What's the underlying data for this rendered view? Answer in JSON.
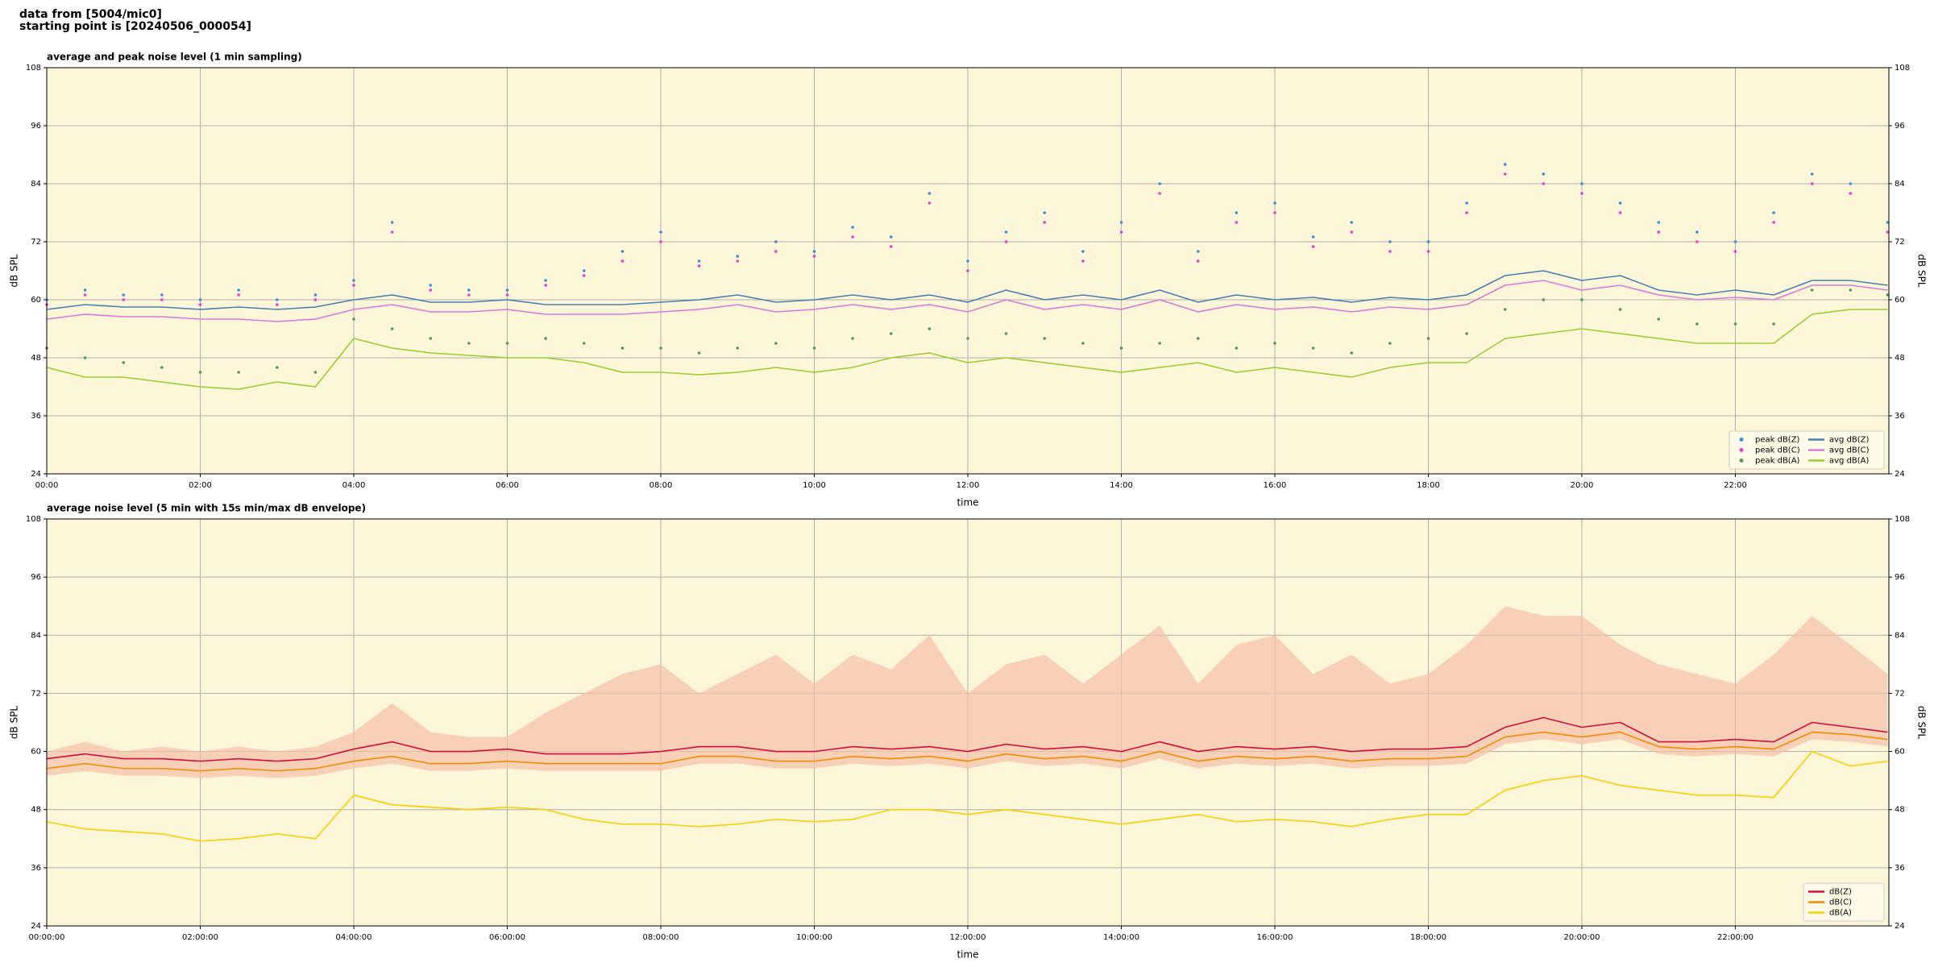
{
  "header": {
    "line1": "data from [5004/mic0]",
    "line2": "starting point is [20240506_000054]"
  },
  "chart_data": [
    {
      "type": "line",
      "title": "average and peak noise level (1 min sampling)",
      "xlabel": "time",
      "ylabel": "dB SPL",
      "y2label": "dB SPL",
      "xlim": [
        0,
        1440
      ],
      "ylim": [
        24,
        108
      ],
      "y2lim": [
        24,
        108
      ],
      "xticks": [
        {
          "value": 0,
          "label": "00:00"
        },
        {
          "value": 120,
          "label": "02:00"
        },
        {
          "value": 240,
          "label": "04:00"
        },
        {
          "value": 360,
          "label": "06:00"
        },
        {
          "value": 480,
          "label": "08:00"
        },
        {
          "value": 600,
          "label": "10:00"
        },
        {
          "value": 720,
          "label": "12:00"
        },
        {
          "value": 840,
          "label": "14:00"
        },
        {
          "value": 960,
          "label": "16:00"
        },
        {
          "value": 1080,
          "label": "18:00"
        },
        {
          "value": 1200,
          "label": "20:00"
        },
        {
          "value": 1320,
          "label": "22:00"
        }
      ],
      "yticks": [
        24,
        36,
        48,
        60,
        72,
        84,
        96,
        108
      ],
      "y2ticks": [
        24,
        36,
        48,
        60,
        72,
        84,
        96,
        108
      ],
      "grid": true,
      "background": "#fdf6d9",
      "legend": "lower right",
      "legend_columns": 2,
      "x": [
        0,
        30,
        60,
        90,
        120,
        150,
        180,
        210,
        240,
        270,
        300,
        330,
        360,
        390,
        420,
        450,
        480,
        510,
        540,
        570,
        600,
        630,
        660,
        690,
        720,
        750,
        780,
        810,
        840,
        870,
        900,
        930,
        960,
        990,
        1020,
        1050,
        1080,
        1110,
        1140,
        1170,
        1200,
        1230,
        1260,
        1290,
        1320,
        1350,
        1380,
        1410,
        1439
      ],
      "series": [
        {
          "name": "peak dB(Z)",
          "color": "#3b8fd6",
          "mode": "markers",
          "values": [
            60,
            62,
            61,
            61,
            60,
            62,
            60,
            61,
            64,
            76,
            63,
            62,
            62,
            64,
            66,
            70,
            74,
            68,
            69,
            72,
            70,
            75,
            73,
            82,
            68,
            74,
            78,
            70,
            76,
            84,
            70,
            78,
            80,
            73,
            76,
            72,
            72,
            80,
            88,
            86,
            84,
            80,
            76,
            74,
            72,
            78,
            86,
            84,
            76
          ]
        },
        {
          "name": "peak dB(C)",
          "color": "#e040d0",
          "mode": "markers",
          "values": [
            59,
            61,
            60,
            60,
            59,
            61,
            59,
            60,
            63,
            74,
            62,
            61,
            61,
            63,
            65,
            68,
            72,
            67,
            68,
            70,
            69,
            73,
            71,
            80,
            66,
            72,
            76,
            68,
            74,
            82,
            68,
            76,
            78,
            71,
            74,
            70,
            70,
            78,
            86,
            84,
            82,
            78,
            74,
            72,
            70,
            76,
            84,
            82,
            74
          ]
        },
        {
          "name": "peak dB(A)",
          "color": "#4f9a5a",
          "mode": "markers",
          "values": [
            50,
            48,
            47,
            46,
            45,
            45,
            46,
            45,
            56,
            54,
            52,
            51,
            51,
            52,
            51,
            50,
            50,
            49,
            50,
            51,
            50,
            52,
            53,
            54,
            52,
            53,
            52,
            51,
            50,
            51,
            52,
            50,
            51,
            50,
            49,
            51,
            52,
            53,
            58,
            60,
            60,
            58,
            56,
            55,
            55,
            55,
            62,
            62,
            61
          ]
        },
        {
          "name": "avg dB(Z)",
          "color": "#4a7fb0",
          "mode": "line",
          "values": [
            58,
            59,
            58.5,
            58.5,
            58,
            58.5,
            58,
            58.5,
            60,
            61,
            59.5,
            59.5,
            60,
            59,
            59,
            59,
            59.5,
            60,
            61,
            59.5,
            60,
            61,
            60,
            61,
            59.5,
            62,
            60,
            61,
            60,
            62,
            59.5,
            61,
            60,
            60.5,
            59.5,
            60.5,
            60,
            61,
            65,
            66,
            64,
            65,
            62,
            61,
            62,
            61,
            64,
            64,
            63
          ]
        },
        {
          "name": "avg dB(C)",
          "color": "#d87ad8",
          "mode": "line",
          "values": [
            56,
            57,
            56.5,
            56.5,
            56,
            56,
            55.5,
            56,
            58,
            59,
            57.5,
            57.5,
            58,
            57,
            57,
            57,
            57.5,
            58,
            59,
            57.5,
            58,
            59,
            58,
            59,
            57.5,
            60,
            58,
            59,
            58,
            60,
            57.5,
            59,
            58,
            58.5,
            57.5,
            58.5,
            58,
            59,
            63,
            64,
            62,
            63,
            61,
            60,
            60.5,
            60,
            63,
            63,
            62
          ]
        },
        {
          "name": "avg dB(A)",
          "color": "#9acd32",
          "mode": "line",
          "values": [
            46,
            44,
            44,
            43,
            42,
            41.5,
            43,
            42,
            52,
            50,
            49,
            48.5,
            48,
            48,
            47,
            45,
            45,
            44.5,
            45,
            46,
            45,
            46,
            48,
            49,
            47,
            48,
            47,
            46,
            45,
            46,
            47,
            45,
            46,
            45,
            44,
            46,
            47,
            47,
            52,
            53,
            54,
            53,
            52,
            51,
            51,
            51,
            57,
            58,
            58
          ]
        }
      ]
    },
    {
      "type": "line",
      "title": "average noise level (5 min with 15s min/max dB envelope)",
      "xlabel": "time",
      "ylabel": "dB SPL",
      "y2label": "dB SPL",
      "xlim": [
        0,
        1440
      ],
      "ylim": [
        24,
        108
      ],
      "y2lim": [
        24,
        108
      ],
      "xticks": [
        {
          "value": 0,
          "label": "00:00:00"
        },
        {
          "value": 120,
          "label": "02:00:00"
        },
        {
          "value": 240,
          "label": "04:00:00"
        },
        {
          "value": 360,
          "label": "06:00:00"
        },
        {
          "value": 480,
          "label": "08:00:00"
        },
        {
          "value": 600,
          "label": "10:00:00"
        },
        {
          "value": 720,
          "label": "12:00:00"
        },
        {
          "value": 840,
          "label": "14:00:00"
        },
        {
          "value": 960,
          "label": "16:00:00"
        },
        {
          "value": 1080,
          "label": "18:00:00"
        },
        {
          "value": 1200,
          "label": "20:00:00"
        },
        {
          "value": 1320,
          "label": "22:00:00"
        }
      ],
      "yticks": [
        24,
        36,
        48,
        60,
        72,
        84,
        96,
        108
      ],
      "y2ticks": [
        24,
        36,
        48,
        60,
        72,
        84,
        96,
        108
      ],
      "grid": true,
      "background": "#fdf6d9",
      "legend": "lower right",
      "legend_columns": 1,
      "x": [
        0,
        30,
        60,
        90,
        120,
        150,
        180,
        210,
        240,
        270,
        300,
        330,
        360,
        390,
        420,
        450,
        480,
        510,
        540,
        570,
        600,
        630,
        660,
        690,
        720,
        750,
        780,
        810,
        840,
        870,
        900,
        930,
        960,
        990,
        1020,
        1050,
        1080,
        1110,
        1140,
        1170,
        1200,
        1230,
        1260,
        1290,
        1320,
        1350,
        1380,
        1410,
        1439
      ],
      "envelope": {
        "color": "#f5c0a8",
        "upper": [
          60,
          62,
          60,
          61,
          60,
          61,
          60,
          61,
          64,
          70,
          64,
          63,
          63,
          68,
          72,
          76,
          78,
          72,
          76,
          80,
          74,
          80,
          77,
          84,
          72,
          78,
          80,
          74,
          80,
          86,
          74,
          82,
          84,
          76,
          80,
          74,
          76,
          82,
          90,
          88,
          88,
          82,
          78,
          76,
          74,
          80,
          88,
          82,
          76
        ],
        "lower": [
          55,
          56,
          55,
          55,
          54.5,
          55,
          54.5,
          55,
          56.5,
          57.5,
          56,
          56,
          56.5,
          56,
          56,
          56,
          56,
          57.5,
          57.5,
          56.5,
          56.5,
          57.5,
          57,
          57.5,
          56.5,
          58,
          57,
          57.5,
          56.5,
          58.5,
          56.5,
          57.5,
          57,
          57.5,
          56.5,
          57,
          57,
          57.5,
          61.5,
          62.5,
          61.5,
          62.5,
          59.5,
          59,
          59.5,
          59,
          62.5,
          62,
          61
        ]
      },
      "series": [
        {
          "name": "dB(Z)",
          "color": "#d0103a",
          "mode": "line",
          "values": [
            58.5,
            59.5,
            58.5,
            58.5,
            58,
            58.5,
            58,
            58.5,
            60.5,
            62,
            60,
            60,
            60.5,
            59.5,
            59.5,
            59.5,
            60,
            61,
            61,
            60,
            60,
            61,
            60.5,
            61,
            60,
            61.5,
            60.5,
            61,
            60,
            62,
            60,
            61,
            60.5,
            61,
            60,
            60.5,
            60.5,
            61,
            65,
            67,
            65,
            66,
            62,
            62,
            62.5,
            62,
            66,
            65,
            64
          ]
        },
        {
          "name": "dB(C)",
          "color": "#f08c00",
          "mode": "line",
          "values": [
            56.5,
            57.5,
            56.5,
            56.5,
            56,
            56.5,
            56,
            56.5,
            58,
            59,
            57.5,
            57.5,
            58,
            57.5,
            57.5,
            57.5,
            57.5,
            59,
            59,
            58,
            58,
            59,
            58.5,
            59,
            58,
            59.5,
            58.5,
            59,
            58,
            60,
            58,
            59,
            58.5,
            59,
            58,
            58.5,
            58.5,
            59,
            63,
            64,
            63,
            64,
            61,
            60.5,
            61,
            60.5,
            64,
            63.5,
            62.5
          ]
        },
        {
          "name": "dB(A)",
          "color": "#f5d000",
          "mode": "line",
          "values": [
            45.5,
            44,
            43.5,
            43,
            41.5,
            42,
            43,
            42,
            51,
            49,
            48.5,
            48,
            48.5,
            48,
            46,
            45,
            45,
            44.5,
            45,
            46,
            45.5,
            46,
            48,
            48,
            47,
            48,
            47,
            46,
            45,
            46,
            47,
            45.5,
            46,
            45.5,
            44.5,
            46,
            47,
            47,
            52,
            54,
            55,
            53,
            52,
            51,
            51,
            50.5,
            60,
            57,
            58
          ]
        }
      ]
    }
  ]
}
